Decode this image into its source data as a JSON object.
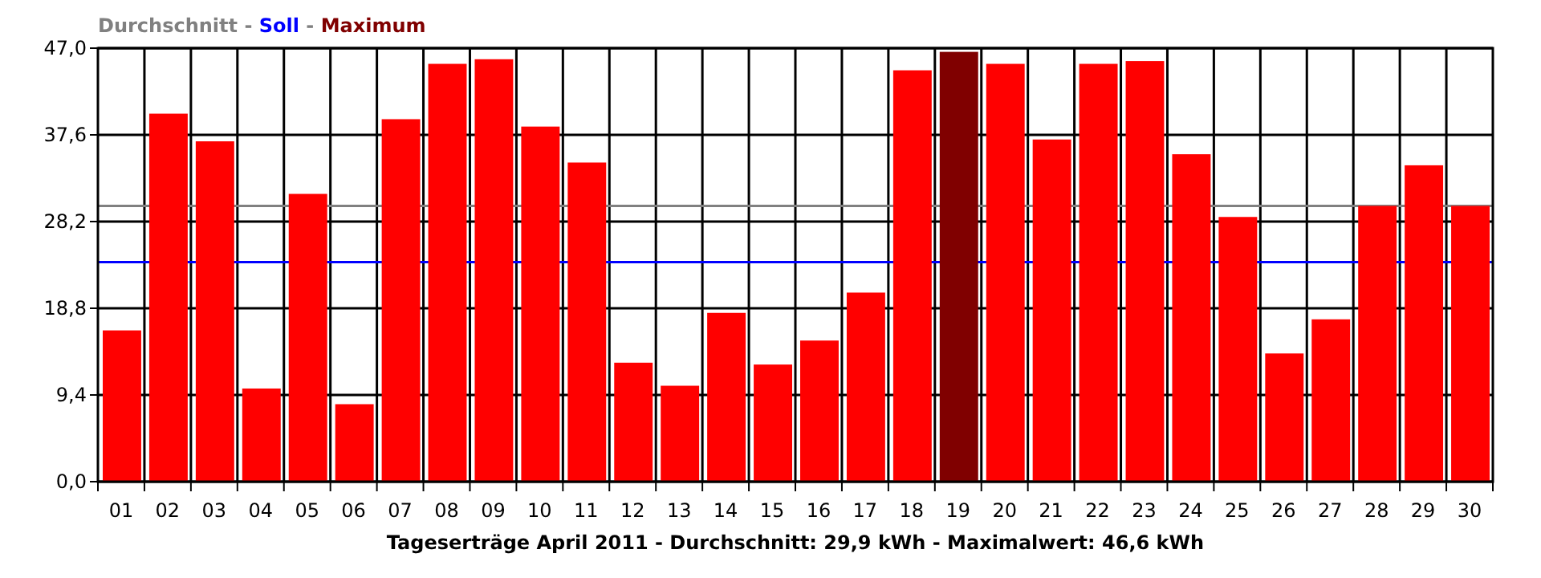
{
  "chart_data": {
    "type": "bar",
    "title": "Durchschnitt - Soll - Maximum",
    "xlabel": "Tageserträge April 2011 - Durchschnitt: 29,9 kWh - Maximalwert: 46,6 kWh",
    "categories": [
      "01",
      "02",
      "03",
      "04",
      "05",
      "06",
      "07",
      "08",
      "09",
      "10",
      "11",
      "12",
      "13",
      "14",
      "15",
      "16",
      "17",
      "18",
      "19",
      "20",
      "21",
      "22",
      "23",
      "24",
      "25",
      "26",
      "27",
      "28",
      "29",
      "30"
    ],
    "values": [
      16.4,
      39.9,
      36.9,
      10.1,
      31.2,
      8.4,
      39.3,
      45.3,
      45.8,
      38.5,
      34.6,
      12.9,
      10.4,
      18.3,
      12.7,
      15.3,
      20.5,
      44.6,
      46.6,
      45.3,
      37.1,
      45.3,
      45.6,
      35.5,
      28.7,
      13.9,
      17.6,
      29.9,
      34.3,
      29.9
    ],
    "colors": [
      "#ff0000",
      "#ff0000",
      "#ff0000",
      "#ff0000",
      "#ff0000",
      "#ff0000",
      "#ff0000",
      "#ff0000",
      "#ff0000",
      "#ff0000",
      "#ff0000",
      "#ff0000",
      "#ff0000",
      "#ff0000",
      "#ff0000",
      "#ff0000",
      "#ff0000",
      "#ff0000",
      "#800000",
      "#ff0000",
      "#ff0000",
      "#ff0000",
      "#ff0000",
      "#ff0000",
      "#ff0000",
      "#ff0000",
      "#ff0000",
      "#ff0000",
      "#ff0000",
      "#ff0000"
    ],
    "ylim": [
      0,
      47
    ],
    "yticks": [
      {
        "value": 0,
        "label": "0,0"
      },
      {
        "value": 9.4,
        "label": "9,4"
      },
      {
        "value": 18.8,
        "label": "18,8"
      },
      {
        "value": 28.2,
        "label": "28,2"
      },
      {
        "value": 37.6,
        "label": "37,6"
      },
      {
        "value": 47,
        "label": "47,0"
      }
    ],
    "grid": true,
    "ref_lines": [
      {
        "axis": "y",
        "value": 29.9,
        "color": "#808080"
      },
      {
        "axis": "y",
        "value": 23.8,
        "color": "#0000ff"
      }
    ]
  }
}
